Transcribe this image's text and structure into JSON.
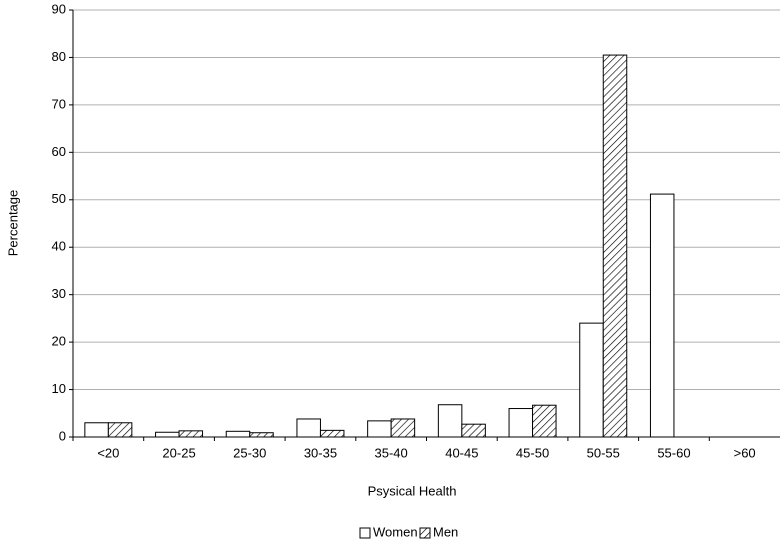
{
  "chart_data": {
    "type": "bar",
    "categories": [
      "<20",
      "20-25",
      "25-30",
      "30-35",
      "35-40",
      "40-45",
      "45-50",
      "50-55",
      "55-60",
      ">60"
    ],
    "series": [
      {
        "name": "Women",
        "color": "#ffffff",
        "values": [
          3,
          1,
          1.2,
          3.8,
          3.4,
          6.8,
          6,
          24,
          51.2,
          0
        ]
      },
      {
        "name": "Men",
        "color": "#000000",
        "pattern": "hatch",
        "values": [
          3,
          1.3,
          0.9,
          1.4,
          3.8,
          2.7,
          6.7,
          80.5,
          0,
          0
        ]
      }
    ],
    "ylim": [
      0,
      90
    ],
    "yticks": [
      0,
      10,
      20,
      30,
      40,
      50,
      60,
      70,
      80,
      90
    ],
    "grid": true,
    "xlabel": "Psysical Health",
    "ylabel": "Percentage",
    "legend": "bottom"
  }
}
